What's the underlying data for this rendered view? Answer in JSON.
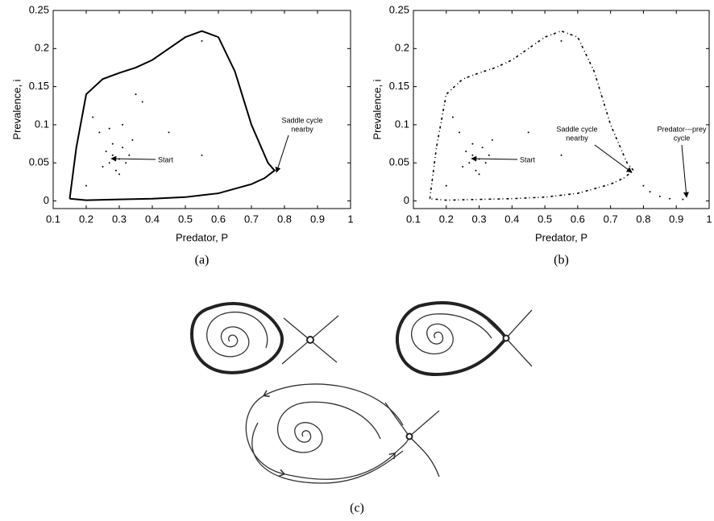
{
  "chart_data": [
    {
      "type": "line",
      "caption": "(a)",
      "xlabel": "Predator, P",
      "ylabel": "Prevalence, i",
      "xlim": [
        0.1,
        1
      ],
      "xticks": [
        0.1,
        0.2,
        0.3,
        0.4,
        0.5,
        0.6,
        0.7,
        0.8,
        0.9,
        1
      ],
      "ylim": [
        -0.01,
        0.25
      ],
      "yticks": [
        0,
        0.05,
        0.1,
        0.15,
        0.2,
        0.25
      ],
      "annotations": [
        [
          "Start"
        ],
        [
          "Saddle cycle",
          "nearby"
        ]
      ],
      "series": [
        {
          "linestyle": "solid",
          "color": "#000000",
          "x": [
            0.15,
            0.17,
            0.2,
            0.25,
            0.3,
            0.35,
            0.4,
            0.45,
            0.5,
            0.55,
            0.6,
            0.65,
            0.7,
            0.75,
            0.77,
            0.74,
            0.7,
            0.6,
            0.5,
            0.4,
            0.3,
            0.2,
            0.15
          ],
          "y": [
            0.003,
            0.07,
            0.14,
            0.16,
            0.168,
            0.175,
            0.185,
            0.2,
            0.215,
            0.223,
            0.215,
            0.17,
            0.1,
            0.05,
            0.04,
            0.03,
            0.022,
            0.01,
            0.005,
            0.003,
            0.002,
            0.001,
            0.003
          ]
        },
        {
          "linestyle": "points",
          "color": "#000000",
          "x": [
            0.3,
            0.28,
            0.27,
            0.29,
            0.32,
            0.31,
            0.28,
            0.26,
            0.25,
            0.3,
            0.33,
            0.34,
            0.22,
            0.24,
            0.35,
            0.37,
            0.45,
            0.55,
            0.55,
            0.2,
            0.31,
            0.27
          ],
          "y": [
            0.055,
            0.06,
            0.05,
            0.04,
            0.05,
            0.07,
            0.075,
            0.065,
            0.045,
            0.035,
            0.06,
            0.08,
            0.11,
            0.09,
            0.14,
            0.13,
            0.09,
            0.06,
            0.21,
            0.02,
            0.1,
            0.095
          ]
        }
      ]
    },
    {
      "type": "line",
      "caption": "(b)",
      "xlabel": "Predator, P",
      "ylabel": "Prevalence, i",
      "xlim": [
        0.1,
        1
      ],
      "xticks": [
        0.1,
        0.2,
        0.3,
        0.4,
        0.5,
        0.6,
        0.7,
        0.8,
        0.9,
        1
      ],
      "ylim": [
        -0.01,
        0.25
      ],
      "yticks": [
        0,
        0.05,
        0.1,
        0.15,
        0.2,
        0.25
      ],
      "annotations": [
        [
          "Start"
        ],
        [
          "Saddle cycle",
          "nearby"
        ],
        [
          "Predator---prey",
          "cycle"
        ]
      ],
      "series": [
        {
          "linestyle": "dotted",
          "color": "#000000",
          "x": [
            0.15,
            0.17,
            0.2,
            0.25,
            0.3,
            0.35,
            0.4,
            0.45,
            0.5,
            0.55,
            0.6,
            0.65,
            0.7,
            0.75,
            0.77,
            0.74,
            0.7,
            0.6,
            0.5,
            0.4,
            0.3,
            0.2,
            0.15
          ],
          "y": [
            0.003,
            0.07,
            0.14,
            0.16,
            0.168,
            0.175,
            0.185,
            0.2,
            0.215,
            0.223,
            0.215,
            0.17,
            0.1,
            0.05,
            0.04,
            0.03,
            0.022,
            0.01,
            0.005,
            0.003,
            0.002,
            0.001,
            0.003
          ]
        },
        {
          "linestyle": "points",
          "color": "#000000",
          "x": [
            0.3,
            0.28,
            0.27,
            0.29,
            0.32,
            0.31,
            0.28,
            0.26,
            0.25,
            0.3,
            0.33,
            0.34,
            0.22,
            0.24,
            0.45,
            0.55,
            0.55,
            0.2,
            0.8,
            0.82,
            0.85,
            0.88,
            0.92
          ],
          "y": [
            0.055,
            0.06,
            0.05,
            0.04,
            0.05,
            0.07,
            0.075,
            0.065,
            0.045,
            0.035,
            0.06,
            0.08,
            0.11,
            0.09,
            0.09,
            0.06,
            0.21,
            0.02,
            0.02,
            0.012,
            0.006,
            0.003,
            0.002
          ]
        }
      ]
    }
  ],
  "diagram": {
    "caption": "(c)"
  }
}
